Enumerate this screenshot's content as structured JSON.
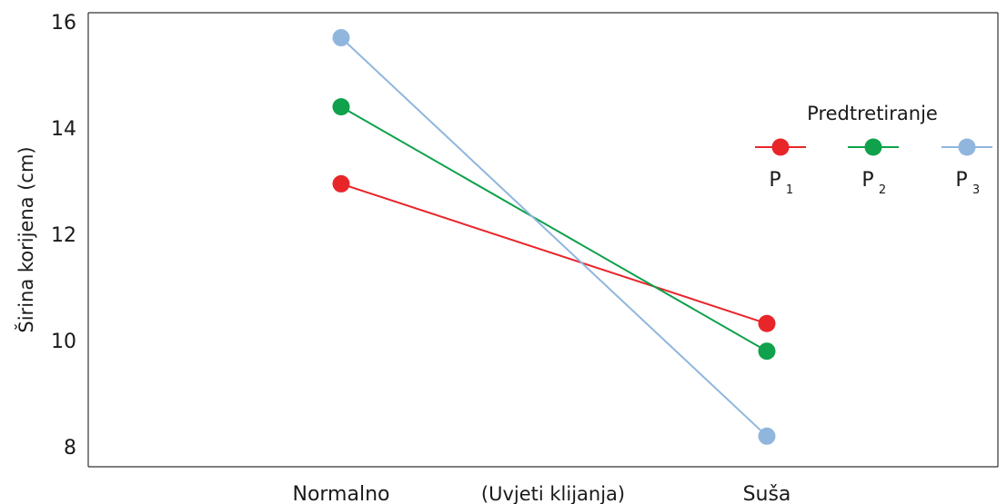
{
  "chart_data": {
    "type": "line",
    "categories": [
      "Normalno",
      "Suša"
    ],
    "xlabel": "(Uvjeti klijanja)",
    "ylabel": "Širina korijena (cm)",
    "ylim": [
      8,
      16
    ],
    "yticks": [
      8,
      10,
      12,
      14,
      16
    ],
    "grid": false,
    "legend": {
      "title": "Predtretiranje",
      "placement": "top-right"
    },
    "series": [
      {
        "name": "P",
        "subscript": "1",
        "color": "#e8262a",
        "values": [
          12.95,
          10.32
        ]
      },
      {
        "name": "P",
        "subscript": "2",
        "color": "#0fa14b",
        "values": [
          14.4,
          9.8
        ]
      },
      {
        "name": "P",
        "subscript": "3",
        "color": "#90b6dd",
        "values": [
          15.7,
          8.2
        ]
      }
    ]
  }
}
